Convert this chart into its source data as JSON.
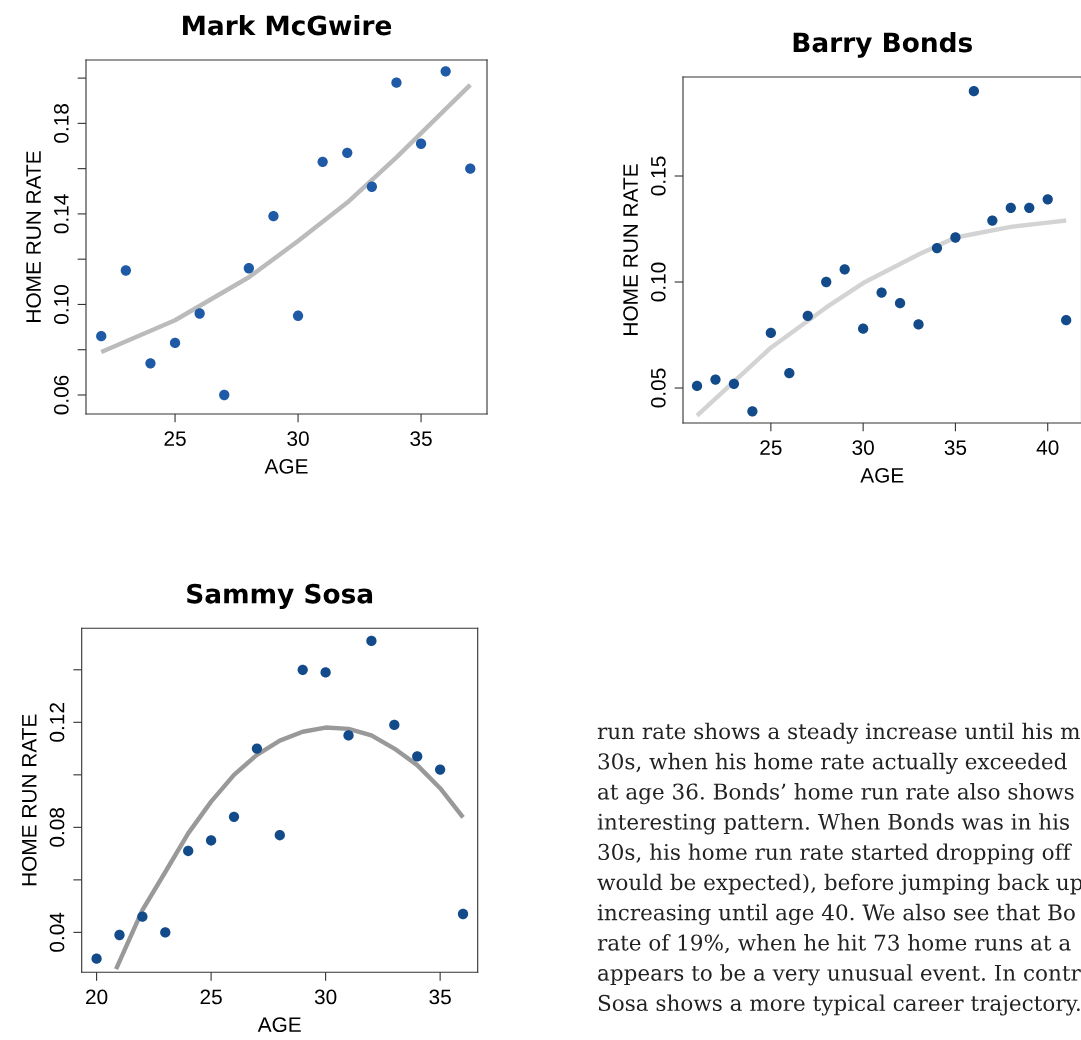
{
  "chart_data": [
    {
      "type": "scatter",
      "title": "Mark McGwire",
      "xlabel": "AGE",
      "ylabel": "HOME RUN RATE",
      "xlim": [
        21.38,
        37.68
      ],
      "ylim": [
        0.0516,
        0.208
      ],
      "xticks": [
        25,
        30,
        35
      ],
      "yticks": [
        {
          "value": 0.06,
          "label": "0.06"
        },
        {
          "value": 0.08,
          "label": null
        },
        {
          "value": 0.1,
          "label": "0.10"
        },
        {
          "value": 0.12,
          "label": null
        },
        {
          "value": 0.14,
          "label": "0.14"
        },
        {
          "value": 0.16,
          "label": null
        },
        {
          "value": 0.18,
          "label": "0.18"
        },
        {
          "value": 0.2,
          "label": null
        }
      ],
      "grid": false,
      "series": [
        {
          "type": "scatter",
          "marker": "circle",
          "color": "#1f5aa6",
          "x": [
            22,
            23,
            24,
            25,
            26,
            27,
            28,
            29,
            30,
            31,
            32,
            33,
            34,
            35,
            36,
            37
          ],
          "values": [
            0.086,
            0.115,
            0.074,
            0.083,
            0.096,
            0.06,
            0.116,
            0.139,
            0.095,
            0.163,
            0.167,
            0.152,
            0.198,
            0.171,
            0.203,
            0.16
          ]
        },
        {
          "type": "line",
          "color": "#bbbbbb",
          "x": [
            22,
            25,
            28,
            30,
            32,
            34,
            37
          ],
          "values": [
            0.079,
            0.093,
            0.112,
            0.128,
            0.145,
            0.165,
            0.197
          ]
        }
      ]
    },
    {
      "type": "scatter",
      "title": "Barry Bonds",
      "xlabel": "AGE",
      "ylabel": "HOME RUN RATE",
      "xlim": [
        20.24,
        41.83
      ],
      "ylim": [
        0.0335,
        0.1967
      ],
      "xticks": [
        25,
        30,
        35,
        40
      ],
      "yticks": [
        {
          "value": 0.05,
          "label": "0.05"
        },
        {
          "value": 0.1,
          "label": "0.10"
        },
        {
          "value": 0.15,
          "label": "0.15"
        }
      ],
      "grid": false,
      "series": [
        {
          "type": "scatter",
          "marker": "circle",
          "color": "#134b8a",
          "x": [
            21,
            22,
            23,
            24,
            25,
            26,
            27,
            28,
            29,
            30,
            31,
            32,
            33,
            34,
            35,
            36,
            37,
            38,
            39,
            40,
            41
          ],
          "values": [
            0.051,
            0.054,
            0.052,
            0.039,
            0.076,
            0.057,
            0.084,
            0.1,
            0.106,
            0.078,
            0.095,
            0.09,
            0.08,
            0.116,
            0.121,
            0.19,
            0.129,
            0.135,
            0.135,
            0.139,
            0.082
          ]
        },
        {
          "type": "line",
          "color": "#d3d3d3",
          "x": [
            21,
            23,
            25,
            28,
            30,
            33,
            35,
            38,
            40,
            41
          ],
          "values": [
            0.037,
            0.053,
            0.069,
            0.088,
            0.0995,
            0.113,
            0.121,
            0.126,
            0.128,
            0.129
          ]
        }
      ]
    },
    {
      "type": "scatter",
      "title": "Sammy Sosa",
      "xlabel": "AGE",
      "ylabel": "HOME RUN RATE",
      "xlim": [
        19.35,
        36.64
      ],
      "ylim": [
        0.0248,
        0.1558
      ],
      "xticks": [
        20,
        25,
        30,
        35
      ],
      "yticks": [
        {
          "value": 0.04,
          "label": "0.04"
        },
        {
          "value": 0.06,
          "label": null
        },
        {
          "value": 0.08,
          "label": "0.08"
        },
        {
          "value": 0.1,
          "label": null
        },
        {
          "value": 0.12,
          "label": "0.12"
        },
        {
          "value": 0.14,
          "label": null
        }
      ],
      "grid": false,
      "series": [
        {
          "type": "scatter",
          "marker": "circle",
          "color": "#134b8a",
          "x": [
            20,
            21,
            22,
            23,
            24,
            25,
            26,
            27,
            28,
            29,
            30,
            31,
            32,
            33,
            34,
            35,
            36
          ],
          "values": [
            0.03,
            0.039,
            0.046,
            0.04,
            0.071,
            0.075,
            0.084,
            0.11,
            0.077,
            0.14,
            0.139,
            0.115,
            0.151,
            0.119,
            0.107,
            0.102,
            0.047
          ]
        },
        {
          "type": "line",
          "color": "#999999",
          "x": [
            20.85,
            22,
            23,
            24,
            25,
            26,
            27,
            28,
            29,
            30,
            31,
            32,
            33,
            34,
            35,
            36
          ],
          "values": [
            0.026,
            0.0485,
            0.063,
            0.0777,
            0.0898,
            0.1,
            0.1076,
            0.113,
            0.1164,
            0.118,
            0.1175,
            0.115,
            0.11,
            0.1037,
            0.0949,
            0.0838
          ]
        }
      ]
    },
    {
      "type": "other",
      "annotations": [
        "run rate shows a steady increase until his m",
        "30s, when his home rate actually exceeded",
        "at age 36. Bonds’ home run rate also shows",
        "interesting pattern. When Bonds was in his",
        "30s, his home run rate started dropping off",
        "would be expected), before jumping back up",
        "increasing until age 40. We also see that Bo",
        "rate of 19%, when he hit 73 home runs at a",
        "appears to be a very unusual event. In contr",
        "Sosa shows a more typical career trajectory."
      ]
    }
  ]
}
